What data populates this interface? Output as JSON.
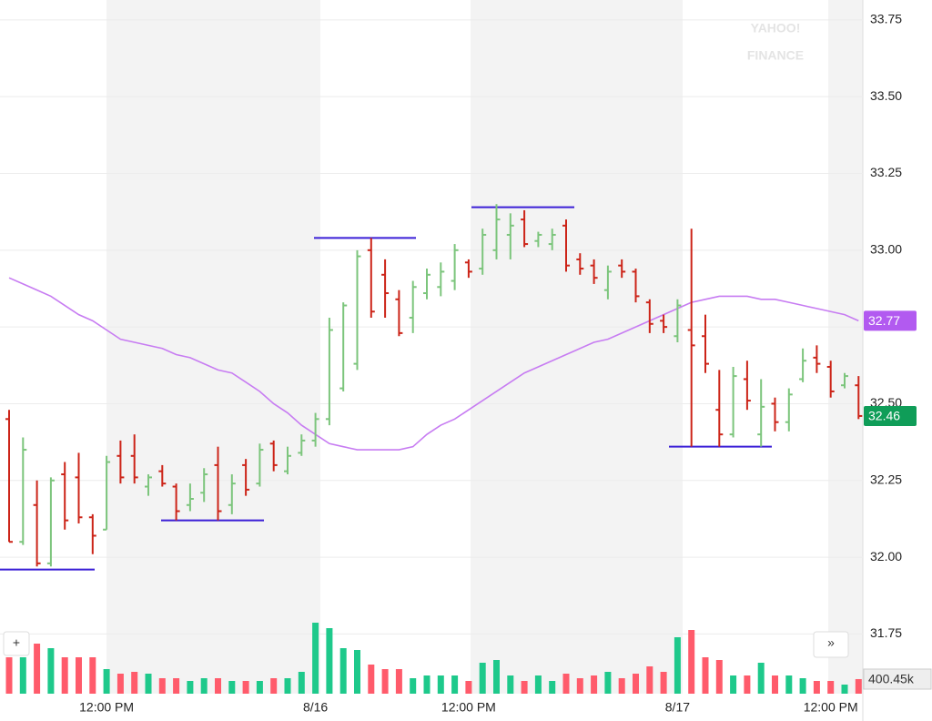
{
  "chart_data": {
    "type": "ohlc",
    "categories": [
      null,
      null,
      null,
      null,
      null,
      null,
      null,
      "12:00 PM",
      null,
      null,
      null,
      null,
      null,
      null,
      null,
      null,
      null,
      null,
      null,
      null,
      null,
      null,
      "8/16",
      null,
      null,
      null,
      null,
      null,
      null,
      null,
      null,
      null,
      null,
      "12:00 PM",
      null,
      null,
      null,
      null,
      null,
      null,
      null,
      null,
      null,
      null,
      null,
      null,
      null,
      null,
      "8/17",
      null,
      null,
      null,
      null,
      null,
      null,
      null,
      null,
      null,
      null,
      "12:00 PM",
      null,
      null
    ],
    "open": [
      32.45,
      32.05,
      32.17,
      31.98,
      32.27,
      32.26,
      32.13,
      32.09,
      32.33,
      32.33,
      32.23,
      32.28,
      32.23,
      32.17,
      32.21,
      32.3,
      32.17,
      32.3,
      32.24,
      32.37,
      32.28,
      32.34,
      32.38,
      32.45,
      32.55,
      32.63,
      33.0,
      32.92,
      32.84,
      32.78,
      32.86,
      32.88,
      32.9,
      32.96,
      32.94,
      33.0,
      33.05,
      33.1,
      33.03,
      33.02,
      33.08,
      32.97,
      32.95,
      32.87,
      32.95,
      32.93,
      32.83,
      32.77,
      32.72,
      32.74,
      32.72,
      32.48,
      32.4,
      32.58,
      32.4,
      32.5,
      32.44,
      32.58,
      32.65,
      32.62,
      32.56,
      32.56
    ],
    "high": [
      32.48,
      32.39,
      32.25,
      32.26,
      32.31,
      32.34,
      32.14,
      32.33,
      32.38,
      32.4,
      32.27,
      32.3,
      32.24,
      32.24,
      32.29,
      32.36,
      32.27,
      32.32,
      32.37,
      32.38,
      32.36,
      32.4,
      32.47,
      32.78,
      32.83,
      33.0,
      33.04,
      32.97,
      32.87,
      32.9,
      32.94,
      32.96,
      33.02,
      32.97,
      33.07,
      33.15,
      33.12,
      33.13,
      33.06,
      33.07,
      33.1,
      32.99,
      32.97,
      32.95,
      32.97,
      32.94,
      32.84,
      32.79,
      32.84,
      33.07,
      32.79,
      32.61,
      32.62,
      32.64,
      32.58,
      32.52,
      32.55,
      32.68,
      32.69,
      32.64,
      32.6,
      32.59
    ],
    "low": [
      32.05,
      32.04,
      31.97,
      31.97,
      32.09,
      32.11,
      32.01,
      32.09,
      32.24,
      32.24,
      32.2,
      32.23,
      32.12,
      32.15,
      32.18,
      32.12,
      32.14,
      32.2,
      32.23,
      32.28,
      32.27,
      32.33,
      32.36,
      32.43,
      32.54,
      32.61,
      32.78,
      32.78,
      32.72,
      32.73,
      32.84,
      32.85,
      32.87,
      32.91,
      32.92,
      32.97,
      32.97,
      33.01,
      33.01,
      33.0,
      32.93,
      32.92,
      32.89,
      32.84,
      32.91,
      32.83,
      32.73,
      32.73,
      32.7,
      32.36,
      32.6,
      32.36,
      32.39,
      32.48,
      32.36,
      32.41,
      32.41,
      32.57,
      32.6,
      32.52,
      32.55,
      32.45
    ],
    "close": [
      32.05,
      32.35,
      31.98,
      32.25,
      32.12,
      32.13,
      32.07,
      32.31,
      32.26,
      32.26,
      32.26,
      32.24,
      32.15,
      32.19,
      32.27,
      32.15,
      32.24,
      32.22,
      32.35,
      32.3,
      32.33,
      32.38,
      32.45,
      32.74,
      32.82,
      32.98,
      32.8,
      32.86,
      32.73,
      32.88,
      32.92,
      32.93,
      33.0,
      32.93,
      33.05,
      33.1,
      33.08,
      33.02,
      33.05,
      33.05,
      32.95,
      32.94,
      32.91,
      32.93,
      32.93,
      32.85,
      32.76,
      32.75,
      32.82,
      32.69,
      32.63,
      32.4,
      32.59,
      32.51,
      32.49,
      32.44,
      32.53,
      32.64,
      32.63,
      32.54,
      32.59,
      32.46
    ],
    "up_color": "#7cc57c",
    "down_color": "#cc2418",
    "ma": {
      "color": "#c77cf2",
      "tag_color": "#b25af0",
      "values": [
        32.91,
        32.89,
        32.87,
        32.85,
        32.82,
        32.79,
        32.77,
        32.74,
        32.71,
        32.7,
        32.69,
        32.68,
        32.66,
        32.65,
        32.63,
        32.61,
        32.6,
        32.57,
        32.54,
        32.5,
        32.47,
        32.43,
        32.4,
        32.37,
        32.36,
        32.35,
        32.35,
        32.35,
        32.35,
        32.36,
        32.4,
        32.43,
        32.45,
        32.48,
        32.51,
        32.54,
        32.57,
        32.6,
        32.62,
        32.64,
        32.66,
        32.68,
        32.7,
        32.71,
        32.73,
        32.75,
        32.77,
        32.79,
        32.81,
        32.83,
        32.84,
        32.85,
        32.85,
        32.85,
        32.84,
        32.84,
        32.83,
        32.82,
        32.81,
        32.8,
        32.79,
        32.77
      ]
    },
    "close_tag_color": "#0f9d58",
    "volume": {
      "up_color": "#1ec98b",
      "down_color": "#ff5b6b",
      "vlim": [
        0,
        3000
      ],
      "values": [
        1000,
        1000,
        1375,
        1250,
        1000,
        1000,
        1000,
        675,
        550,
        600,
        550,
        425,
        425,
        350,
        425,
        425,
        350,
        350,
        350,
        425,
        425,
        600,
        1950,
        1800,
        1250,
        1200,
        800,
        675,
        675,
        425,
        500,
        500,
        500,
        350,
        850,
        925,
        500,
        350,
        500,
        350,
        550,
        425,
        500,
        600,
        425,
        550,
        750,
        600,
        1550,
        1750,
        1000,
        925,
        500,
        500,
        850,
        500,
        500,
        425,
        350,
        350,
        250,
        400.45
      ],
      "value_labels": [
        null,
        null,
        null,
        null,
        null,
        null,
        null,
        null,
        null,
        null,
        null,
        null,
        null,
        null,
        null,
        null,
        null,
        null,
        null,
        null,
        null,
        null,
        null,
        null,
        null,
        null,
        null,
        null,
        null,
        null,
        null,
        null,
        null,
        null,
        null,
        null,
        null,
        null,
        null,
        null,
        null,
        null,
        null,
        null,
        null,
        null,
        null,
        null,
        null,
        null,
        null,
        null,
        null,
        null,
        null,
        null,
        null,
        null,
        null,
        null,
        null,
        "400.45k"
      ]
    },
    "levels": [
      31.96,
      32.12,
      33.04,
      33.14,
      32.36
    ],
    "level_color": "#3a1fd6",
    "ylim": [
      31.6,
      33.8
    ],
    "yticks": [
      31.75,
      {
        "value": 32,
        "label": "32.00"
      },
      32.25,
      {
        "value": 32.5,
        "label": "32.50"
      },
      32.75,
      {
        "value": 33,
        "label": "33.00"
      },
      33.25,
      {
        "value": 33.5,
        "label": "33.50"
      },
      33.75
    ],
    "grid": true,
    "watermark": [
      "YAHOO!",
      "FINANCE"
    ]
  },
  "controls": {
    "zoom": "+",
    "next": "»"
  }
}
